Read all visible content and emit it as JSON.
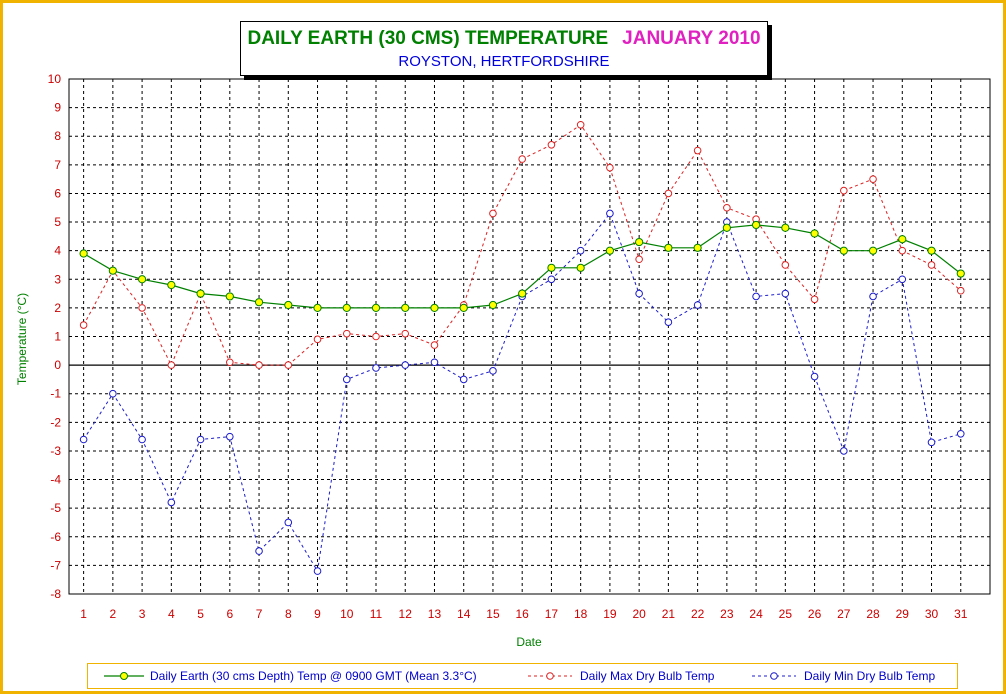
{
  "title": {
    "main": "DAILY EARTH (30 CMS) TEMPERATURE",
    "month": "JANUARY 2010",
    "subtitle": "ROYSTON, HERTFORDSHIRE"
  },
  "colors": {
    "earth": "#008000",
    "earth_marker": "#ffff00",
    "max": "#dd2222",
    "min": "#1c1ccc",
    "frame": "#f0b400"
  },
  "chart_data": {
    "type": "line",
    "xlabel": "Date",
    "ylabel": "Temperature (°C)",
    "ylim": [
      -8,
      10
    ],
    "grid": true,
    "legend_position": "bottom",
    "x": [
      1,
      2,
      3,
      4,
      5,
      6,
      7,
      8,
      9,
      10,
      11,
      12,
      13,
      14,
      15,
      16,
      17,
      18,
      19,
      20,
      21,
      22,
      23,
      24,
      25,
      26,
      27,
      28,
      29,
      30,
      31
    ],
    "series": [
      {
        "name": "Daily Earth (30 cms Depth) Temp @ 0900 GMT (Mean 3.3°C)",
        "key": "earth",
        "values": [
          3.9,
          3.3,
          3.0,
          2.8,
          2.5,
          2.4,
          2.2,
          2.1,
          2.0,
          2.0,
          2.0,
          2.0,
          2.0,
          2.0,
          2.1,
          2.5,
          3.4,
          3.4,
          4.0,
          4.3,
          4.1,
          4.1,
          4.8,
          4.9,
          4.8,
          4.6,
          4.0,
          4.0,
          4.4,
          4.0,
          3.2
        ]
      },
      {
        "name": "Daily Max Dry Bulb Temp",
        "key": "max",
        "values": [
          1.4,
          3.3,
          2.0,
          0.0,
          2.5,
          0.1,
          0.0,
          0.0,
          0.9,
          1.1,
          1.0,
          1.1,
          0.7,
          2.1,
          5.3,
          7.2,
          7.7,
          8.4,
          6.9,
          3.7,
          6.0,
          7.5,
          5.5,
          5.1,
          3.5,
          2.3,
          6.1,
          6.5,
          4.0,
          3.5,
          2.6
        ]
      },
      {
        "name": "Daily Min Dry Bulb Temp",
        "key": "min",
        "values": [
          -2.6,
          -1.0,
          -2.6,
          -4.8,
          -2.6,
          -2.5,
          -6.5,
          -5.5,
          -7.2,
          -0.5,
          -0.1,
          0.0,
          0.1,
          -0.5,
          -0.2,
          2.4,
          3.0,
          4.0,
          5.3,
          2.5,
          1.5,
          2.1,
          5.0,
          2.4,
          2.5,
          -0.4,
          -3.0,
          2.4,
          3.0,
          -2.7,
          -2.4
        ]
      }
    ]
  }
}
